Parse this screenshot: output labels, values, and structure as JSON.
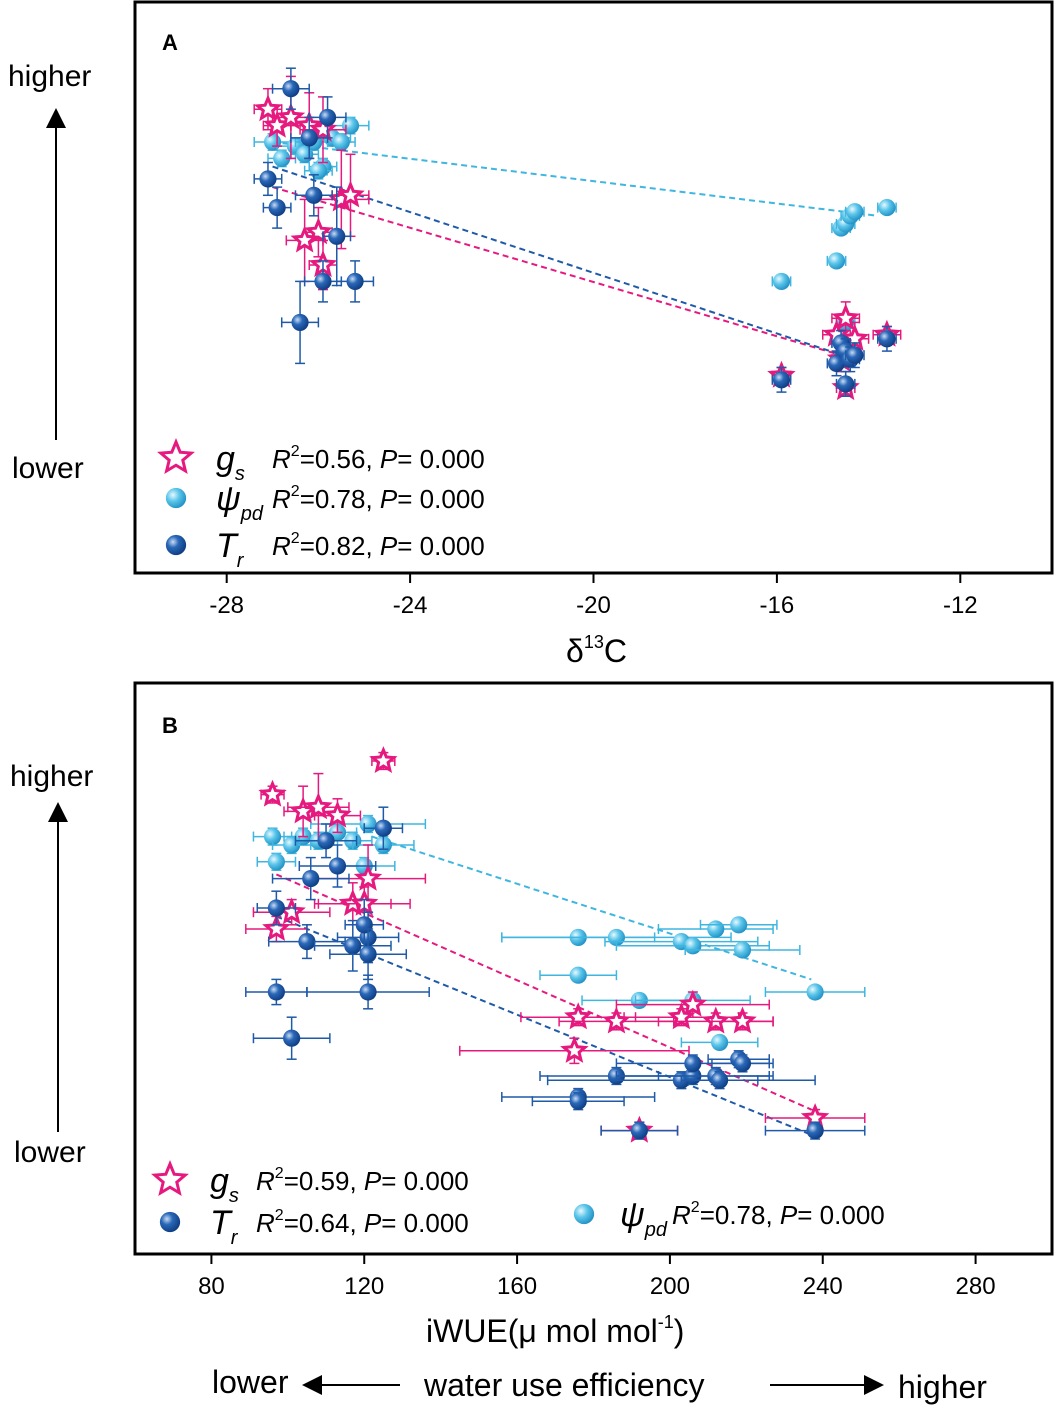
{
  "colors": {
    "gs": "#e6197f",
    "psi": "#3fb6e0",
    "tr": "#1f5aa8",
    "frame": "#000000"
  },
  "footer": {
    "low": "lower",
    "title": "water use efficiency",
    "high": "higher"
  },
  "chart_data": [
    {
      "panel": "A",
      "type": "scatter",
      "xlabel": "δ13C",
      "xlabel_base": "δ",
      "xlabel_sup": "13",
      "xlabel_tail": "C",
      "ylabel_high": "higher",
      "ylabel_low": "lower",
      "xlim": [
        -30,
        -10
      ],
      "ylim": [
        0,
        1
      ],
      "xticks": [
        -28,
        -24,
        -20,
        -16,
        -12
      ],
      "xtick_labels": [
        "-28",
        "-24",
        "-20",
        "-16",
        "-12"
      ],
      "legend": [
        {
          "key": "gs",
          "symbol": "g",
          "sub": "s",
          "stat_r2": "=0.56, ",
          "stat_p": "= 0.000"
        },
        {
          "key": "psi",
          "symbol": "ψ",
          "sub": "pd",
          "stat_r2": "=0.78, ",
          "stat_p": "= 0.000"
        },
        {
          "key": "tr",
          "symbol": "T",
          "sub": "r",
          "stat_r2": "=0.82, ",
          "stat_p": "= 0.000"
        }
      ],
      "legend_r": "R",
      "legend_p": "P",
      "series": [
        {
          "key": "gs",
          "name": "gs",
          "marker": "star",
          "points": [
            {
              "x": -27.1,
              "y": 0.88,
              "xe": 0.3,
              "ye": 0.05
            },
            {
              "x": -26.9,
              "y": 0.84,
              "xe": 0.3,
              "ye": 0.05
            },
            {
              "x": -26.6,
              "y": 0.86,
              "xe": 0.4,
              "ye": 0.1
            },
            {
              "x": -26.2,
              "y": 0.84,
              "xe": 0.4,
              "ye": 0.08
            },
            {
              "x": -25.9,
              "y": 0.83,
              "xe": 0.5,
              "ye": 0.08
            },
            {
              "x": -25.5,
              "y": 0.66,
              "xe": 0.6,
              "ye": 0.12
            },
            {
              "x": -25.3,
              "y": 0.67,
              "xe": 0.4,
              "ye": 0.1
            },
            {
              "x": -26.0,
              "y": 0.58,
              "xe": 0.3,
              "ye": 0.06
            },
            {
              "x": -26.3,
              "y": 0.56,
              "xe": 0.4,
              "ye": 0.1
            },
            {
              "x": -25.9,
              "y": 0.5,
              "xe": 0.3,
              "ye": 0.06
            },
            {
              "x": -15.9,
              "y": 0.23,
              "xe": 0.2,
              "ye": 0.02
            },
            {
              "x": -14.7,
              "y": 0.33,
              "xe": 0.3,
              "ye": 0.04
            },
            {
              "x": -14.5,
              "y": 0.37,
              "xe": 0.3,
              "ye": 0.04
            },
            {
              "x": -14.3,
              "y": 0.32,
              "xe": 0.3,
              "ye": 0.04
            },
            {
              "x": -14.6,
              "y": 0.27,
              "xe": 0.2,
              "ye": 0.03
            },
            {
              "x": -14.5,
              "y": 0.2,
              "xe": 0.2,
              "ye": 0.02
            },
            {
              "x": -13.6,
              "y": 0.33,
              "xe": 0.3,
              "ye": 0.02
            }
          ]
        },
        {
          "key": "psi",
          "name": "ψpd",
          "marker": "sphere",
          "points": [
            {
              "x": -27.0,
              "y": 0.8,
              "xe": 0.4,
              "ye": 0.02
            },
            {
              "x": -26.8,
              "y": 0.76,
              "xe": 0.3,
              "ye": 0.02
            },
            {
              "x": -26.5,
              "y": 0.79,
              "xe": 0.4,
              "ye": 0.02
            },
            {
              "x": -26.3,
              "y": 0.77,
              "xe": 0.3,
              "ye": 0.02
            },
            {
              "x": -26.1,
              "y": 0.8,
              "xe": 0.4,
              "ye": 0.02
            },
            {
              "x": -25.9,
              "y": 0.74,
              "xe": 0.3,
              "ye": 0.02
            },
            {
              "x": -26.0,
              "y": 0.73,
              "xe": 0.3,
              "ye": 0.02
            },
            {
              "x": -25.7,
              "y": 0.81,
              "xe": 0.4,
              "ye": 0.02
            },
            {
              "x": -25.5,
              "y": 0.8,
              "xe": 0.3,
              "ye": 0.02
            },
            {
              "x": -25.3,
              "y": 0.84,
              "xe": 0.4,
              "ye": 0.02
            },
            {
              "x": -15.9,
              "y": 0.46,
              "xe": 0.2,
              "ye": 0.01
            },
            {
              "x": -14.7,
              "y": 0.51,
              "xe": 0.2,
              "ye": 0.01
            },
            {
              "x": -14.6,
              "y": 0.59,
              "xe": 0.2,
              "ye": 0.01
            },
            {
              "x": -14.5,
              "y": 0.6,
              "xe": 0.2,
              "ye": 0.01
            },
            {
              "x": -14.4,
              "y": 0.62,
              "xe": 0.2,
              "ye": 0.01
            },
            {
              "x": -14.3,
              "y": 0.63,
              "xe": 0.2,
              "ye": 0.01
            },
            {
              "x": -13.6,
              "y": 0.64,
              "xe": 0.2,
              "ye": 0.01
            },
            {
              "x": -14.5,
              "y": 0.36,
              "xe": 0.2,
              "ye": 0.01
            },
            {
              "x": -14.6,
              "y": 0.31,
              "xe": 0.2,
              "ye": 0.01
            }
          ]
        },
        {
          "key": "tr",
          "name": "Tr",
          "marker": "sphere",
          "points": [
            {
              "x": -26.6,
              "y": 0.93,
              "xe": 0.4,
              "ye": 0.05
            },
            {
              "x": -25.8,
              "y": 0.86,
              "xe": 0.4,
              "ye": 0.05
            },
            {
              "x": -26.2,
              "y": 0.81,
              "xe": 0.4,
              "ye": 0.05
            },
            {
              "x": -27.1,
              "y": 0.71,
              "xe": 0.3,
              "ye": 0.04
            },
            {
              "x": -26.1,
              "y": 0.67,
              "xe": 0.4,
              "ye": 0.05
            },
            {
              "x": -26.9,
              "y": 0.64,
              "xe": 0.3,
              "ye": 0.05
            },
            {
              "x": -25.6,
              "y": 0.57,
              "xe": 0.3,
              "ye": 0.12
            },
            {
              "x": -25.9,
              "y": 0.46,
              "xe": 0.4,
              "ye": 0.05
            },
            {
              "x": -25.2,
              "y": 0.46,
              "xe": 0.4,
              "ye": 0.05
            },
            {
              "x": -26.4,
              "y": 0.36,
              "xe": 0.4,
              "ye": 0.1
            },
            {
              "x": -15.9,
              "y": 0.22,
              "xe": 0.2,
              "ye": 0.03
            },
            {
              "x": -14.7,
              "y": 0.26,
              "xe": 0.2,
              "ye": 0.03
            },
            {
              "x": -14.6,
              "y": 0.31,
              "xe": 0.2,
              "ye": 0.03
            },
            {
              "x": -14.5,
              "y": 0.29,
              "xe": 0.2,
              "ye": 0.03
            },
            {
              "x": -14.4,
              "y": 0.27,
              "xe": 0.2,
              "ye": 0.03
            },
            {
              "x": -14.5,
              "y": 0.21,
              "xe": 0.2,
              "ye": 0.03
            },
            {
              "x": -13.6,
              "y": 0.32,
              "xe": 0.2,
              "ye": 0.03
            },
            {
              "x": -14.3,
              "y": 0.28,
              "xe": 0.2,
              "ye": 0.03
            }
          ]
        }
      ],
      "fits": [
        {
          "key": "psi",
          "x": [
            -27.0,
            -13.8
          ],
          "y": [
            0.8,
            0.62
          ]
        },
        {
          "key": "gs",
          "x": [
            -27.0,
            -14.3
          ],
          "y": [
            0.69,
            0.27
          ]
        },
        {
          "key": "tr",
          "x": [
            -27.0,
            -14.3
          ],
          "y": [
            0.74,
            0.27
          ]
        }
      ]
    },
    {
      "panel": "B",
      "type": "scatter",
      "xlabel": "iWUE(μ mol mol-1)",
      "xlabel_base": "iWUE(μ mol mol",
      "xlabel_sup": "-1",
      "xlabel_tail": ")",
      "ylabel_high": "higher",
      "ylabel_low": "lower",
      "xlim": [
        60,
        300
      ],
      "ylim": [
        0,
        1
      ],
      "xticks": [
        80,
        120,
        160,
        200,
        240,
        280
      ],
      "xtick_labels": [
        "80",
        "120",
        "160",
        "200",
        "240",
        "280"
      ],
      "legend": [
        {
          "key": "gs",
          "symbol": "g",
          "sub": "s",
          "stat_r2": "=0.59, ",
          "stat_p": "= 0.000"
        },
        {
          "key": "tr",
          "symbol": "T",
          "sub": "r",
          "stat_r2": "=0.64, ",
          "stat_p": "= 0.000"
        },
        {
          "key": "psi",
          "symbol": "ψ",
          "sub": "pd",
          "stat_r2": "=0.78, ",
          "stat_p": "= 0.000"
        }
      ],
      "legend_r": "R",
      "legend_p": "P",
      "series": [
        {
          "key": "gs",
          "name": "gs",
          "marker": "star",
          "points": [
            {
              "x": 125,
              "y": 0.95,
              "xe": 3,
              "ye": 0.02
            },
            {
              "x": 96,
              "y": 0.87,
              "xe": 3,
              "ye": 0.02
            },
            {
              "x": 104,
              "y": 0.83,
              "xe": 5,
              "ye": 0.06
            },
            {
              "x": 108,
              "y": 0.84,
              "xe": 8,
              "ye": 0.08
            },
            {
              "x": 113,
              "y": 0.82,
              "xe": 6,
              "ye": 0.04
            },
            {
              "x": 121,
              "y": 0.67,
              "xe": 15,
              "ye": 0.08
            },
            {
              "x": 117,
              "y": 0.61,
              "xe": 10,
              "ye": 0.05
            },
            {
              "x": 101,
              "y": 0.59,
              "xe": 10,
              "ye": 0.03
            },
            {
              "x": 97,
              "y": 0.55,
              "xe": 8,
              "ye": 0.03
            },
            {
              "x": 120,
              "y": 0.61,
              "xe": 12,
              "ye": 0.04
            },
            {
              "x": 206,
              "y": 0.37,
              "xe": 20,
              "ye": 0.03
            },
            {
              "x": 203,
              "y": 0.34,
              "xe": 15,
              "ye": 0.02
            },
            {
              "x": 176,
              "y": 0.34,
              "xe": 15,
              "ye": 0.02
            },
            {
              "x": 186,
              "y": 0.33,
              "xe": 15,
              "ye": 0.02
            },
            {
              "x": 212,
              "y": 0.33,
              "xe": 15,
              "ye": 0.02
            },
            {
              "x": 219,
              "y": 0.33,
              "xe": 8,
              "ye": 0.02
            },
            {
              "x": 175,
              "y": 0.26,
              "xe": 30,
              "ye": 0.03
            },
            {
              "x": 192,
              "y": 0.07,
              "xe": 10,
              "ye": 0.02
            },
            {
              "x": 238,
              "y": 0.1,
              "xe": 13,
              "ye": 0.02
            }
          ]
        },
        {
          "key": "psi",
          "name": "ψpd",
          "marker": "sphere",
          "points": [
            {
              "x": 96,
              "y": 0.77,
              "xe": 5,
              "ye": 0.02
            },
            {
              "x": 97,
              "y": 0.71,
              "xe": 5,
              "ye": 0.02
            },
            {
              "x": 101,
              "y": 0.75,
              "xe": 5,
              "ye": 0.02
            },
            {
              "x": 104,
              "y": 0.77,
              "xe": 5,
              "ye": 0.02
            },
            {
              "x": 108,
              "y": 0.76,
              "xe": 5,
              "ye": 0.02
            },
            {
              "x": 113,
              "y": 0.78,
              "xe": 5,
              "ye": 0.02
            },
            {
              "x": 117,
              "y": 0.76,
              "xe": 5,
              "ye": 0.02
            },
            {
              "x": 121,
              "y": 0.8,
              "xe": 15,
              "ye": 0.02
            },
            {
              "x": 125,
              "y": 0.75,
              "xe": 8,
              "ye": 0.02
            },
            {
              "x": 120,
              "y": 0.7,
              "xe": 8,
              "ye": 0.02
            },
            {
              "x": 176,
              "y": 0.53,
              "xe": 20,
              "ye": 0.01
            },
            {
              "x": 186,
              "y": 0.53,
              "xe": 30,
              "ye": 0.01
            },
            {
              "x": 203,
              "y": 0.52,
              "xe": 20,
              "ye": 0.01
            },
            {
              "x": 206,
              "y": 0.51,
              "xe": 20,
              "ye": 0.01
            },
            {
              "x": 212,
              "y": 0.55,
              "xe": 15,
              "ye": 0.01
            },
            {
              "x": 218,
              "y": 0.56,
              "xe": 10,
              "ye": 0.01
            },
            {
              "x": 219,
              "y": 0.5,
              "xe": 15,
              "ye": 0.01
            },
            {
              "x": 176,
              "y": 0.44,
              "xe": 10,
              "ye": 0.01
            },
            {
              "x": 192,
              "y": 0.38,
              "xe": 15,
              "ye": 0.01
            },
            {
              "x": 206,
              "y": 0.38,
              "xe": 15,
              "ye": 0.01
            },
            {
              "x": 213,
              "y": 0.28,
              "xe": 10,
              "ye": 0.01
            },
            {
              "x": 238,
              "y": 0.4,
              "xe": 13,
              "ye": 0.01
            }
          ]
        },
        {
          "key": "tr",
          "name": "Tr",
          "marker": "sphere",
          "points": [
            {
              "x": 125,
              "y": 0.79,
              "xe": 5,
              "ye": 0.05
            },
            {
              "x": 110,
              "y": 0.76,
              "xe": 8,
              "ye": 0.04
            },
            {
              "x": 113,
              "y": 0.7,
              "xe": 10,
              "ye": 0.05
            },
            {
              "x": 106,
              "y": 0.67,
              "xe": 10,
              "ye": 0.05
            },
            {
              "x": 97,
              "y": 0.6,
              "xe": 5,
              "ye": 0.04
            },
            {
              "x": 105,
              "y": 0.52,
              "xe": 10,
              "ye": 0.04
            },
            {
              "x": 117,
              "y": 0.51,
              "xe": 10,
              "ye": 0.06
            },
            {
              "x": 121,
              "y": 0.53,
              "xe": 8,
              "ye": 0.06
            },
            {
              "x": 120,
              "y": 0.56,
              "xe": 5,
              "ye": 0.06
            },
            {
              "x": 121,
              "y": 0.49,
              "xe": 10,
              "ye": 0.06
            },
            {
              "x": 97,
              "y": 0.4,
              "xe": 8,
              "ye": 0.03
            },
            {
              "x": 121,
              "y": 0.4,
              "xe": 16,
              "ye": 0.04
            },
            {
              "x": 101,
              "y": 0.29,
              "xe": 10,
              "ye": 0.05
            },
            {
              "x": 176,
              "y": 0.15,
              "xe": 20,
              "ye": 0.02
            },
            {
              "x": 176,
              "y": 0.14,
              "xe": 12,
              "ye": 0.02
            },
            {
              "x": 186,
              "y": 0.2,
              "xe": 20,
              "ye": 0.02
            },
            {
              "x": 192,
              "y": 0.07,
              "xe": 10,
              "ye": 0.02
            },
            {
              "x": 203,
              "y": 0.19,
              "xe": 35,
              "ye": 0.02
            },
            {
              "x": 206,
              "y": 0.2,
              "xe": 20,
              "ye": 0.02
            },
            {
              "x": 206,
              "y": 0.23,
              "xe": 20,
              "ye": 0.02
            },
            {
              "x": 212,
              "y": 0.2,
              "xe": 15,
              "ye": 0.02
            },
            {
              "x": 213,
              "y": 0.19,
              "xe": 10,
              "ye": 0.02
            },
            {
              "x": 218,
              "y": 0.24,
              "xe": 8,
              "ye": 0.02
            },
            {
              "x": 219,
              "y": 0.23,
              "xe": 8,
              "ye": 0.02
            },
            {
              "x": 238,
              "y": 0.07,
              "xe": 13,
              "ye": 0.02
            }
          ]
        }
      ],
      "fits": [
        {
          "key": "psi",
          "x": [
            122,
            237
          ],
          "y": [
            0.77,
            0.43
          ]
        },
        {
          "key": "gs",
          "x": [
            97,
            237
          ],
          "y": [
            0.68,
            0.12
          ]
        },
        {
          "key": "tr",
          "x": [
            97,
            237
          ],
          "y": [
            0.58,
            0.06
          ]
        }
      ]
    }
  ]
}
